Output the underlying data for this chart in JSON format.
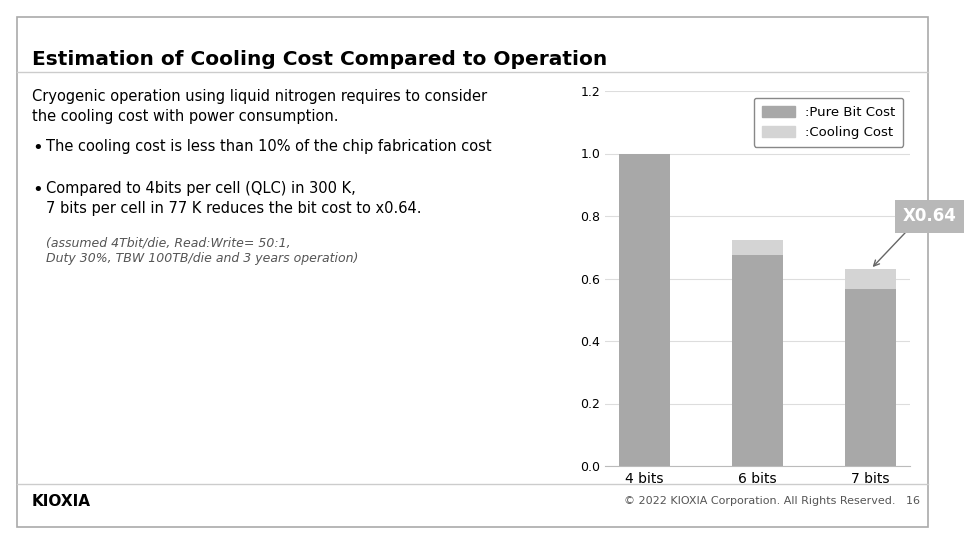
{
  "title": "Estimation of Cooling Cost Compared to Operation",
  "bg_color": "#ffffff",
  "body_text1_line1": "Cryogenic operation using liquid nitrogen requires to consider",
  "body_text1_line2": "the cooling cost with power consumption.",
  "bullet1": "The cooling cost is less than 10% of the chip fabrication cost",
  "bullet2_line1": "Compared to 4bits per cell (QLC) in 300 K,",
  "bullet2_line2": "7 bits per cell in 77 K reduces the bit cost to x0.64.",
  "footnote_line1": "(assumed 4Tbit/die, Read:Write= 50:1,",
  "footnote_line2": "Duty 30%, TBW 100TB/die and 3 years operation)",
  "categories": [
    "4 bits",
    "6 bits",
    "7 bits"
  ],
  "pure_bit_cost": [
    1.0,
    0.675,
    0.565
  ],
  "cooling_cost": [
    0.0,
    0.048,
    0.065
  ],
  "bar_color_dark": "#a8a8a8",
  "bar_color_light": "#d4d4d4",
  "ylim": [
    0,
    1.2
  ],
  "yticks": [
    0,
    0.2,
    0.4,
    0.6,
    0.8,
    1.0,
    1.2
  ],
  "legend_pure": ":Pure Bit Cost",
  "legend_cooling": ":Cooling Cost",
  "annotation_label": "X0.64",
  "annotation_bg": "#b8b8b8",
  "footer_left": "KIOXIA",
  "footer_right": "© 2022 KIOXIA Corporation. All Rights Reserved.   16"
}
